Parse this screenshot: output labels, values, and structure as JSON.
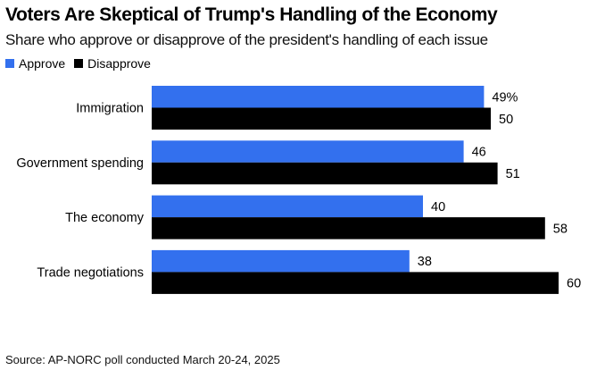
{
  "chart_data": {
    "type": "bar",
    "orientation": "horizontal",
    "title": "Voters Are Skeptical of Trump's Handling of the Economy",
    "subtitle": "Share who approve or disapprove of the president's handling of each issue",
    "categories": [
      "Immigration",
      "Government spending",
      "The economy",
      "Trade negotiations"
    ],
    "series": [
      {
        "name": "Approve",
        "color": "#3370ee",
        "values": [
          49,
          46,
          40,
          38
        ],
        "labels": [
          "49%",
          "46",
          "40",
          "38"
        ]
      },
      {
        "name": "Disapprove",
        "color": "#000000",
        "values": [
          50,
          51,
          58,
          60
        ],
        "labels": [
          "50",
          "51",
          "58",
          "60"
        ]
      }
    ],
    "xlabel": "",
    "ylabel": "",
    "xlim": [
      0,
      60
    ],
    "grid": false,
    "legend": "top-left",
    "source": "Source: AP-NORC poll conducted March 20-24, 2025"
  }
}
